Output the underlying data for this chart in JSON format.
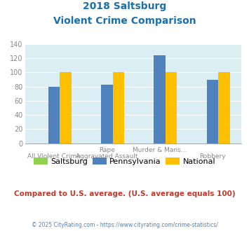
{
  "title_line1": "2018 Saltsburg",
  "title_line2": "Violent Crime Comparison",
  "title_color": "#1a6faf",
  "cat_labels_row1": [
    "",
    "Rape",
    "Murder & Mans...",
    ""
  ],
  "cat_labels_row2": [
    "All Violent Crime",
    "Aggravated Assault",
    "",
    "Robbery"
  ],
  "series": {
    "Saltsburg": {
      "values": [
        0,
        0,
        0,
        0
      ],
      "color": "#92d050"
    },
    "Pennsylvania": {
      "values": [
        80,
        82,
        124,
        89
      ],
      "color": "#4f81bd"
    },
    "National": {
      "values": [
        100,
        100,
        100,
        100
      ],
      "color": "#ffc000"
    }
  },
  "ylim": [
    0,
    140
  ],
  "yticks": [
    0,
    20,
    40,
    60,
    80,
    100,
    120,
    140
  ],
  "plot_bg_color": "#daeef3",
  "fig_bg_color": "#ffffff",
  "grid_color": "#ffffff",
  "legend_labels": [
    "Saltsburg",
    "Pennsylvania",
    "National"
  ],
  "legend_colors": [
    "#92d050",
    "#4f81bd",
    "#ffc000"
  ],
  "footer_text": "Compared to U.S. average. (U.S. average equals 100)",
  "footer_color": "#c0392b",
  "credit_text": "© 2025 CityRating.com - https://www.cityrating.com/crime-statistics/",
  "credit_color": "#4f81bd",
  "bar_width": 0.22
}
